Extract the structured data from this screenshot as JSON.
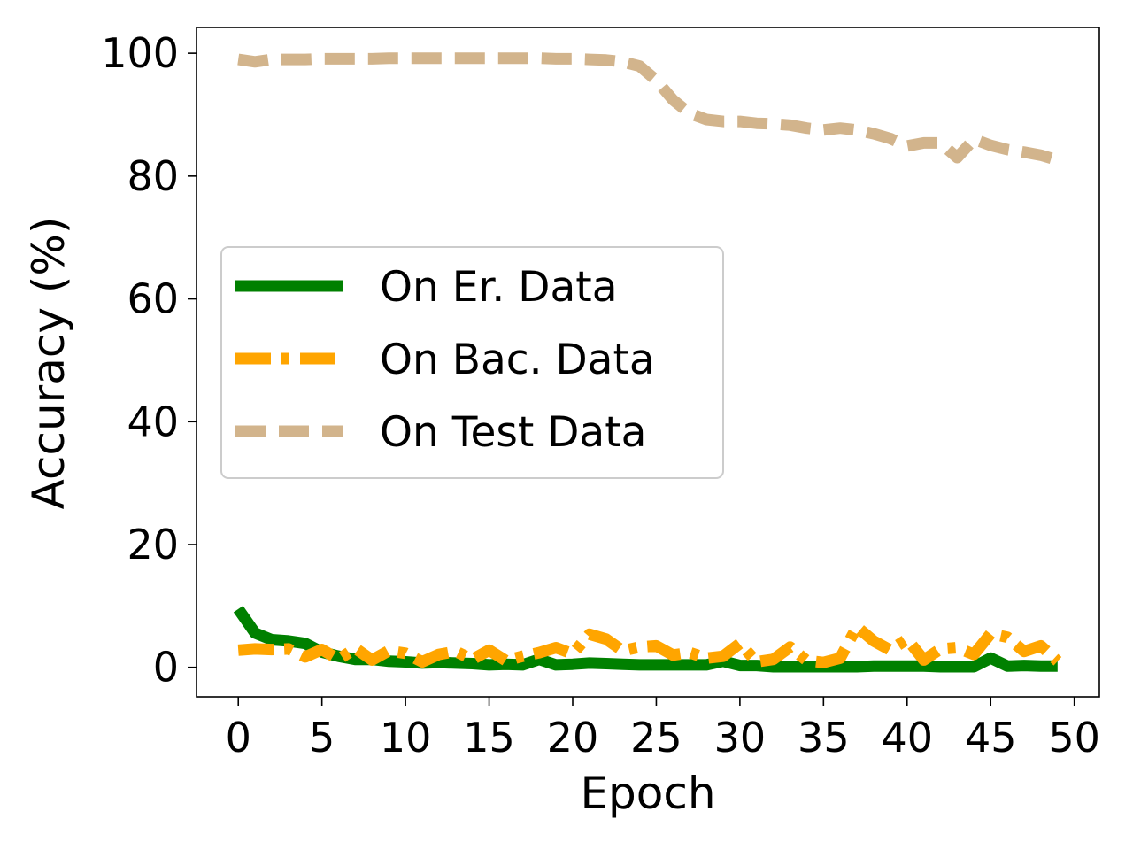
{
  "chart_data": {
    "type": "line",
    "title": "",
    "xlabel": "Epoch",
    "ylabel": "Accuracy (%)",
    "xlim": [
      -2.5,
      51.5
    ],
    "ylim": [
      -4.8,
      104.2
    ],
    "xticks": [
      0,
      5,
      10,
      15,
      20,
      25,
      30,
      35,
      40,
      45,
      50
    ],
    "yticks": [
      0,
      20,
      40,
      60,
      80,
      100
    ],
    "grid": false,
    "legend_position": "center-left",
    "x": [
      0,
      1,
      2,
      3,
      4,
      5,
      6,
      7,
      8,
      9,
      10,
      11,
      12,
      13,
      14,
      15,
      16,
      17,
      18,
      19,
      20,
      21,
      22,
      23,
      24,
      25,
      26,
      27,
      28,
      29,
      30,
      31,
      32,
      33,
      34,
      35,
      36,
      37,
      38,
      39,
      40,
      41,
      42,
      43,
      44,
      45,
      46,
      47,
      48,
      49
    ],
    "series": [
      {
        "name": "On Er. Data",
        "color": "#008000",
        "style": "solid",
        "values": [
          9.5,
          5.6,
          4.5,
          4.3,
          3.9,
          2.5,
          1.8,
          1.3,
          1.3,
          1.0,
          0.9,
          0.7,
          0.8,
          0.7,
          0.6,
          0.4,
          0.5,
          0.4,
          1.3,
          0.4,
          0.5,
          0.7,
          0.6,
          0.5,
          0.4,
          0.4,
          0.4,
          0.4,
          0.4,
          1.0,
          0.3,
          0.3,
          0.1,
          0.1,
          0.1,
          0.1,
          0.1,
          0.1,
          0.2,
          0.2,
          0.2,
          0.2,
          0.1,
          0.1,
          0.1,
          1.5,
          0.2,
          0.3,
          0.2,
          0.2
        ]
      },
      {
        "name": "On Bac. Data",
        "color": "#ffa500",
        "style": "dashdot",
        "values": [
          2.8,
          3.0,
          2.9,
          3.0,
          1.7,
          2.9,
          1.3,
          3.1,
          1.2,
          2.7,
          2.3,
          0.9,
          2.1,
          2.6,
          1.3,
          2.8,
          1.1,
          1.8,
          2.4,
          3.2,
          2.2,
          5.4,
          4.6,
          2.7,
          3.3,
          3.5,
          2.0,
          2.4,
          1.5,
          1.8,
          3.9,
          0.9,
          1.3,
          3.3,
          1.1,
          0.8,
          1.5,
          6.6,
          4.3,
          2.8,
          4.6,
          1.2,
          3.0,
          3.2,
          2.1,
          5.5,
          4.9,
          2.6,
          3.5,
          1.0
        ]
      },
      {
        "name": "On Test Data",
        "color": "#d2b48c",
        "style": "dashed",
        "values": [
          99.0,
          98.6,
          99.0,
          99.0,
          99.0,
          99.1,
          99.1,
          99.1,
          99.1,
          99.2,
          99.2,
          99.2,
          99.2,
          99.2,
          99.2,
          99.2,
          99.2,
          99.2,
          99.2,
          99.1,
          99.1,
          99.0,
          98.9,
          98.6,
          97.9,
          95.6,
          92.4,
          90.2,
          89.2,
          88.9,
          88.9,
          88.6,
          88.5,
          88.3,
          87.8,
          87.5,
          87.8,
          87.5,
          86.9,
          86.1,
          84.9,
          85.4,
          85.4,
          83.0,
          86.0,
          85.0,
          84.3,
          83.9,
          83.4,
          82.6
        ]
      }
    ]
  }
}
